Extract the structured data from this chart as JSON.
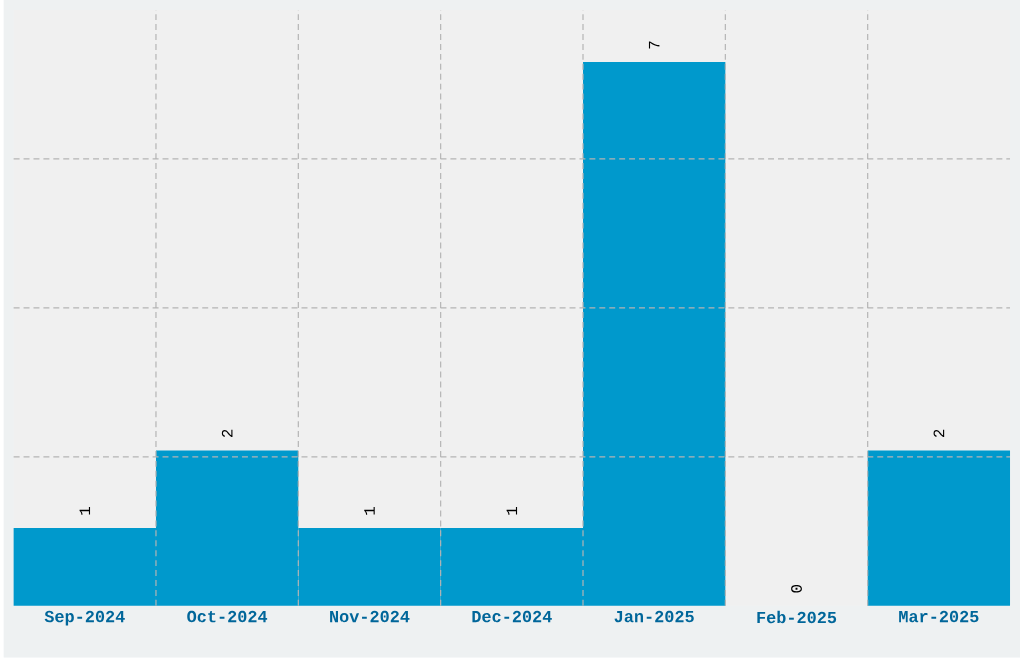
{
  "chart_data": {
    "type": "bar",
    "categories": [
      "Sep-2024",
      "Oct-2024",
      "Nov-2024",
      "Dec-2024",
      "Jan-2025",
      "Feb-2025",
      "Mar-2025"
    ],
    "values": [
      1,
      2,
      1,
      1,
      7,
      0,
      2
    ],
    "color": "#0099cc",
    "ylim": [
      0,
      7.67
    ],
    "grid": true,
    "tick_labels": "x",
    "data_labels": true
  }
}
